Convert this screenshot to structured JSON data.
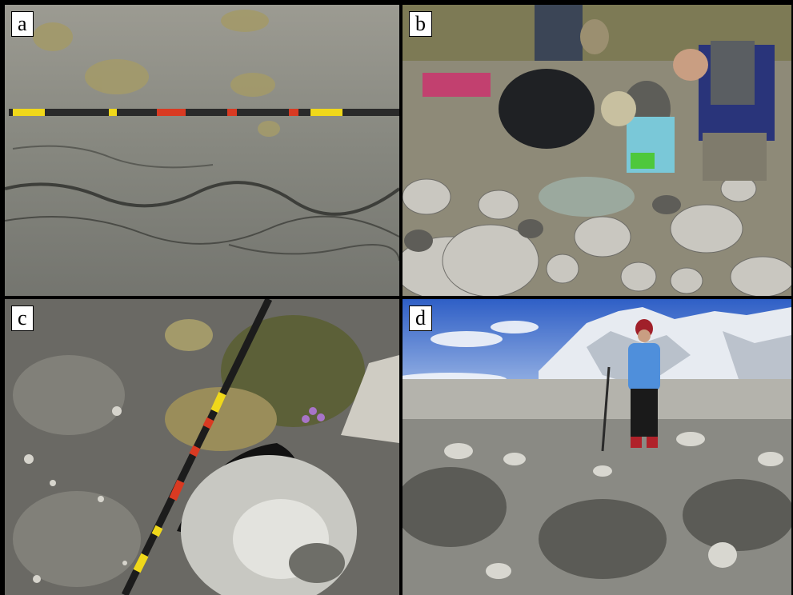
{
  "panels": [
    {
      "label": "a",
      "icon": "cracked-ground-photo"
    },
    {
      "label": "b",
      "icon": "spring-sampling-photo"
    },
    {
      "label": "c",
      "icon": "ground-crack-pole-photo"
    },
    {
      "label": "d",
      "icon": "mountain-person-photo"
    }
  ],
  "colors": {
    "border": "#000000",
    "label_bg": "#ffffff",
    "ground": "#8a8b86",
    "sky": "#3f6fcf",
    "grass": "#a39a6a"
  }
}
